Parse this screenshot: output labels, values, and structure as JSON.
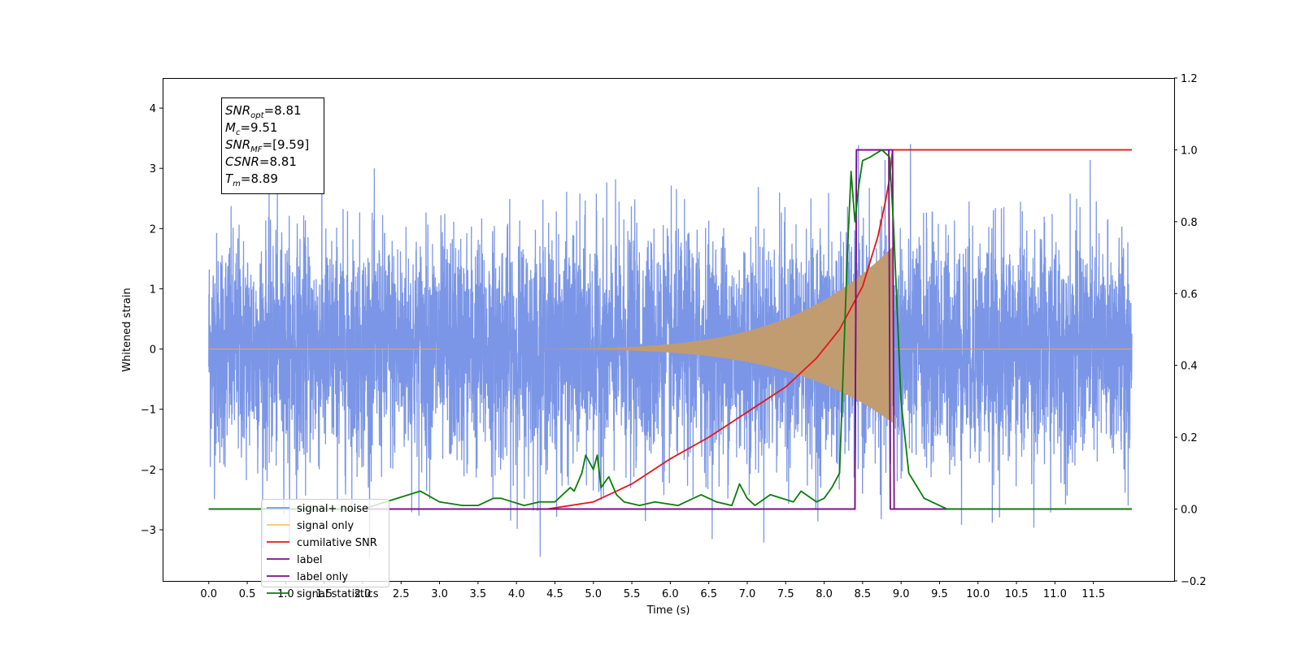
{
  "chart_data": {
    "type": "line",
    "xlabel": "Time (s)",
    "ylabel": "Whitened strain",
    "xlim": [
      -0.6,
      12.55
    ],
    "ylim": [
      -3.85,
      4.5
    ],
    "ylim_right": [
      -0.2,
      1.2
    ],
    "x_ticks": [
      0.0,
      0.5,
      1.0,
      1.5,
      2.0,
      2.5,
      3.0,
      3.5,
      4.0,
      4.5,
      5.0,
      5.5,
      6.0,
      6.5,
      7.0,
      7.5,
      8.0,
      8.5,
      9.0,
      9.5,
      10.0,
      10.5,
      11.0,
      11.5
    ],
    "x_tick_labels": [
      "0.0",
      "0.5",
      "1.0",
      "1.5",
      "2.0",
      "2.5",
      "3.0",
      "3.5",
      "4.0",
      "4.5",
      "5.0",
      "5.5",
      "6.0",
      "6.5",
      "7.0",
      "7.5",
      "8.0",
      "8.5",
      "9.0",
      "9.5",
      "10.0",
      "10.5",
      "11.0",
      "11.5"
    ],
    "y_ticks_left": [
      -3,
      -2,
      -1,
      0,
      1,
      2,
      3,
      4
    ],
    "y_tick_labels_left": [
      "−3",
      "−2",
      "−1",
      "0",
      "1",
      "2",
      "3",
      "4"
    ],
    "y_ticks_right": [
      -0.2,
      0.0,
      0.2,
      0.4,
      0.6,
      0.8,
      1.0,
      1.2
    ],
    "y_tick_labels_right": [
      "−0.2",
      "0.0",
      "0.2",
      "0.4",
      "0.6",
      "0.8",
      "1.0",
      "1.2"
    ],
    "grid": false,
    "legend_location": "lower-left",
    "stats": [
      {
        "base": "SNR",
        "sub": "opt",
        "value": "=8.81"
      },
      {
        "base": "M",
        "sub": "c",
        "value": "=9.51"
      },
      {
        "base": "SNR",
        "sub": "MF",
        "value": "=[9.59]"
      },
      {
        "base": "CSNR",
        "sub": "",
        "value": "=8.81"
      },
      {
        "base": "T",
        "sub": "m",
        "value": "=8.89"
      }
    ],
    "series": [
      {
        "name": "signal+ noise",
        "color": "#7b96e6",
        "axis": "left",
        "description_values": {
          "x_range": [
            0.0,
            12.0
          ],
          "std": 0.95,
          "max": 4.1,
          "min": -3.45
        }
      },
      {
        "name": "signal only",
        "color": "#ffc36b",
        "axis": "left",
        "description_values": {
          "x_range": [
            0.0,
            12.0
          ],
          "chirp_start": 3.0,
          "merger_time": 8.89,
          "peak_amplitude": 1.7
        }
      },
      {
        "name": "cumilative SNR",
        "color": "#e8141a",
        "axis": "right",
        "x": [
          4.4,
          5.0,
          5.5,
          6.0,
          6.5,
          7.0,
          7.5,
          7.9,
          8.2,
          8.5,
          8.7,
          8.8,
          8.85,
          8.89,
          9.0,
          12.0
        ],
        "y": [
          0.0,
          0.02,
          0.07,
          0.14,
          0.2,
          0.27,
          0.34,
          0.42,
          0.5,
          0.62,
          0.76,
          0.86,
          0.92,
          1.0,
          1.0,
          1.0
        ]
      },
      {
        "name": "label",
        "color": "#7a0f86",
        "axis": "right",
        "x": [
          0.0,
          8.4,
          8.42,
          8.89,
          8.91,
          12.0
        ],
        "y": [
          0.0,
          0.0,
          1.0,
          1.0,
          0.0,
          0.0
        ]
      },
      {
        "name": "label only",
        "color": "#7a0f86",
        "axis": "right",
        "x": [
          0.0,
          8.4,
          8.42,
          8.84,
          8.86,
          12.0
        ],
        "y": [
          0.0,
          0.0,
          1.0,
          1.0,
          0.0,
          0.0
        ]
      },
      {
        "name": "signal statistics",
        "color": "#0a7d0a",
        "axis": "right",
        "x": [
          0.0,
          2.0,
          2.3,
          2.6,
          2.75,
          3.0,
          3.3,
          3.5,
          3.7,
          3.8,
          4.1,
          4.3,
          4.5,
          4.7,
          4.75,
          4.85,
          4.9,
          5.0,
          5.05,
          5.1,
          5.2,
          5.3,
          5.4,
          5.6,
          5.8,
          6.1,
          6.3,
          6.4,
          6.6,
          6.8,
          6.9,
          7.0,
          7.1,
          7.3,
          7.6,
          7.7,
          7.9,
          8.0,
          8.1,
          8.2,
          8.3,
          8.35,
          8.4,
          8.45,
          8.5,
          8.6,
          8.75,
          8.85,
          8.9,
          9.0,
          9.1,
          9.3,
          9.6,
          12.0
        ],
        "y": [
          0.0,
          0.0,
          0.02,
          0.04,
          0.05,
          0.02,
          0.01,
          0.01,
          0.03,
          0.03,
          0.01,
          0.02,
          0.02,
          0.06,
          0.05,
          0.1,
          0.15,
          0.11,
          0.15,
          0.06,
          0.09,
          0.04,
          0.02,
          0.01,
          0.02,
          0.01,
          0.03,
          0.04,
          0.02,
          0.01,
          0.07,
          0.03,
          0.01,
          0.04,
          0.02,
          0.05,
          0.02,
          0.03,
          0.06,
          0.1,
          0.7,
          0.94,
          0.8,
          0.9,
          0.97,
          0.98,
          1.0,
          0.98,
          0.8,
          0.3,
          0.1,
          0.03,
          0.0,
          0.0
        ]
      }
    ]
  }
}
